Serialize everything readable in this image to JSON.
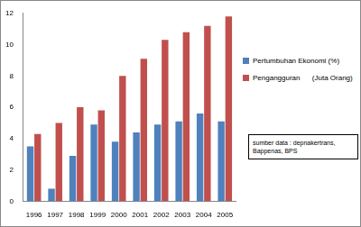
{
  "chart_data": {
    "type": "bar",
    "categories": [
      "1996",
      "1997",
      "1998",
      "1999",
      "2000",
      "2001",
      "2002",
      "2003",
      "2004",
      "2005"
    ],
    "series": [
      {
        "name": "Pertumbuhan Ekonomi (%)",
        "color": "#4f81bd",
        "values": [
          3.5,
          0.8,
          2.9,
          4.9,
          3.8,
          4.4,
          4.9,
          5.1,
          5.6,
          5.1
        ]
      },
      {
        "name": "Pengangguran      (Juta Orang)",
        "color": "#c0504d",
        "values": [
          4.3,
          5.0,
          6.0,
          5.8,
          8.0,
          9.1,
          10.3,
          10.8,
          11.2,
          11.8
        ]
      }
    ],
    "annotation": "sumber data : depnakertrans, Bappenas, BPS",
    "ylim": [
      0,
      12
    ],
    "yticks": [
      0,
      2,
      4,
      6,
      8,
      10,
      12
    ],
    "grid": false,
    "legend": "right"
  }
}
